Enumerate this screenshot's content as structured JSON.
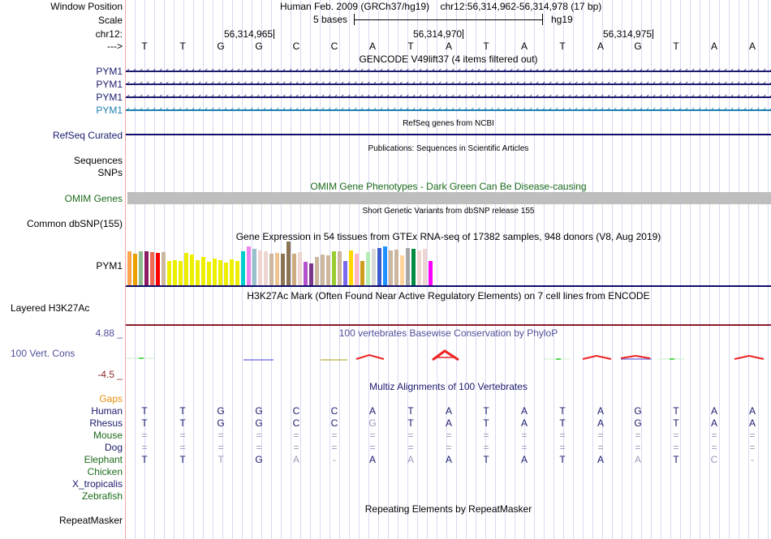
{
  "header": {
    "window_position_label": "Window Position",
    "scale_label": "Scale",
    "chrom_label": "chr12:",
    "strand_label": "--->",
    "assembly_title": "Human Feb. 2009 (GRCh37/hg19)",
    "position_range": "chr12:56,314,962-56,314,978 (17 bp)",
    "scale_text": "5 bases",
    "scale_db": "hg19",
    "position_ticks": [
      "56,314,965",
      "56,314,970",
      "56,314,975"
    ]
  },
  "sequence": [
    "T",
    "T",
    "G",
    "G",
    "C",
    "C",
    "A",
    "T",
    "A",
    "T",
    "A",
    "T",
    "A",
    "G",
    "T",
    "A",
    "A"
  ],
  "tracks": {
    "gencode": {
      "title": "GENCODE V49lift37 (4 items filtered out)",
      "items": [
        {
          "label": "PYM1",
          "color": "#1a1a6e"
        },
        {
          "label": "PYM1",
          "color": "#1a1a6e"
        },
        {
          "label": "PYM1",
          "color": "#1a1a6e"
        },
        {
          "label": "PYM1",
          "color": "#1b7fb0"
        }
      ]
    },
    "refseq": {
      "title": "RefSeq genes from NCBI",
      "label": "RefSeq Curated"
    },
    "publications": {
      "title": "Publications: Sequences in Scientific Articles",
      "labels": [
        "Sequences",
        "SNPs"
      ]
    },
    "omim": {
      "title": "OMIM Gene Phenotypes - Dark Green Can Be Disease-causing",
      "label": "OMIM Genes"
    },
    "dbsnp": {
      "title": "Short Genetic Variants from dbSNP release 155",
      "label": "Common dbSNP(155)"
    },
    "gtex": {
      "title": "Gene Expression in 54 tissues from GTEx RNA-seq of 17382 samples, 948 donors (V8, Aug 2019)",
      "label": "PYM1",
      "bars": [
        {
          "color": "#ffa54f",
          "value": 0.78
        },
        {
          "color": "#eea000",
          "value": 0.72
        },
        {
          "color": "#8fbc8f",
          "value": 0.78
        },
        {
          "color": "#8b1c62",
          "value": 0.78
        },
        {
          "color": "#ee6a50",
          "value": 0.76
        },
        {
          "color": "#ff0000",
          "value": 0.74
        },
        {
          "color": "#cdb79e",
          "value": 0.76
        },
        {
          "color": "#eeee00",
          "value": 0.56
        },
        {
          "color": "#eeee00",
          "value": 0.58
        },
        {
          "color": "#eeee00",
          "value": 0.56
        },
        {
          "color": "#eeee00",
          "value": 0.74
        },
        {
          "color": "#eeee00",
          "value": 0.7
        },
        {
          "color": "#eeee00",
          "value": 0.58
        },
        {
          "color": "#eeee00",
          "value": 0.64
        },
        {
          "color": "#eeee00",
          "value": 0.54
        },
        {
          "color": "#eeee00",
          "value": 0.62
        },
        {
          "color": "#eeee00",
          "value": 0.58
        },
        {
          "color": "#eeee00",
          "value": 0.52
        },
        {
          "color": "#eeee00",
          "value": 0.6
        },
        {
          "color": "#eeee00",
          "value": 0.56
        },
        {
          "color": "#00cdcd",
          "value": 0.78
        },
        {
          "color": "#ee82ee",
          "value": 0.88
        },
        {
          "color": "#9ac0cd",
          "value": 0.84
        },
        {
          "color": "#eed5d2",
          "value": 0.8
        },
        {
          "color": "#eed5d2",
          "value": 0.78
        },
        {
          "color": "#cdb79e",
          "value": 0.72
        },
        {
          "color": "#eec591",
          "value": 0.74
        },
        {
          "color": "#8b7355",
          "value": 0.72
        },
        {
          "color": "#8b7355",
          "value": 1.0
        },
        {
          "color": "#cdaa7d",
          "value": 0.72
        },
        {
          "color": "#eed5d2",
          "value": 0.76
        },
        {
          "color": "#b452cd",
          "value": 0.54
        },
        {
          "color": "#7a378b",
          "value": 0.5
        },
        {
          "color": "#cdb79e",
          "value": 0.64
        },
        {
          "color": "#cdb79e",
          "value": 0.7
        },
        {
          "color": "#cdb79e",
          "value": 0.68
        },
        {
          "color": "#9acd32",
          "value": 0.78
        },
        {
          "color": "#cdb79e",
          "value": 0.78
        },
        {
          "color": "#7b68ee",
          "value": 0.56
        },
        {
          "color": "#ffd700",
          "value": 0.8
        },
        {
          "color": "#ffb6c1",
          "value": 0.72
        },
        {
          "color": "#cd9b1d",
          "value": 0.56
        },
        {
          "color": "#b4eeb4",
          "value": 0.76
        },
        {
          "color": "#d9d9d9",
          "value": 0.84
        },
        {
          "color": "#3a5fcd",
          "value": 0.86
        },
        {
          "color": "#1e90ff",
          "value": 0.88
        },
        {
          "color": "#cdb79e",
          "value": 0.8
        },
        {
          "color": "#cdb79e",
          "value": 0.82
        },
        {
          "color": "#ffd39b",
          "value": 0.68
        },
        {
          "color": "#a6a6a6",
          "value": 0.86
        },
        {
          "color": "#008b45",
          "value": 0.84
        },
        {
          "color": "#eed5d2",
          "value": 0.8
        },
        {
          "color": "#eed5d2",
          "value": 0.84
        },
        {
          "color": "#ff00ff",
          "value": 0.56
        }
      ]
    },
    "h3k27ac": {
      "title": "H3K27Ac Mark (Often Found Near Active Regulatory Elements) on 7 cell lines from ENCODE",
      "label": "Layered H3K27Ac"
    },
    "phylop": {
      "title": "100 vertebrates Basewise Conservation by PhyloP",
      "label": "100 Vert. Cons",
      "max_label": "4.88 _",
      "min_label": "-4.5 _"
    },
    "multiz": {
      "title": "Multiz Alignments of 100 Vertebrates",
      "gaps_label": "Gaps",
      "species": [
        {
          "name": "Human",
          "color": "#1a1a6e",
          "bases": [
            "T",
            "T",
            "G",
            "G",
            "C",
            "C",
            "A",
            "T",
            "A",
            "T",
            "A",
            "T",
            "A",
            "G",
            "T",
            "A",
            "A"
          ],
          "dim": []
        },
        {
          "name": "Rhesus",
          "color": "#1a1a6e",
          "bases": [
            "T",
            "T",
            "G",
            "G",
            "C",
            "C",
            "G",
            "T",
            "A",
            "T",
            "A",
            "T",
            "A",
            "G",
            "T",
            "A",
            "A"
          ],
          "dim": [
            6
          ]
        },
        {
          "name": "Mouse",
          "color": "#1a6b1a",
          "bases": [
            "=",
            "=",
            "=",
            "=",
            "=",
            "=",
            "=",
            "=",
            "=",
            "=",
            "=",
            "=",
            "=",
            "=",
            "=",
            "=",
            "="
          ],
          "dim": [
            0,
            1,
            2,
            3,
            4,
            5,
            6,
            7,
            8,
            9,
            10,
            11,
            12,
            13,
            14,
            15,
            16
          ]
        },
        {
          "name": "Dog",
          "color": "#1a1a6e",
          "bases": [
            "=",
            "=",
            "=",
            "=",
            "=",
            "=",
            "=",
            "=",
            "=",
            "=",
            "=",
            "=",
            "=",
            "=",
            "=",
            "=",
            "="
          ],
          "dim": [
            0,
            1,
            2,
            3,
            4,
            5,
            6,
            7,
            8,
            9,
            10,
            11,
            12,
            13,
            14,
            15,
            16
          ]
        },
        {
          "name": "Elephant",
          "color": "#1a6b1a",
          "bases": [
            "T",
            "T",
            "T",
            "G",
            "A",
            "-",
            "A",
            "A",
            "A",
            "T",
            "A",
            "T",
            "A",
            "A",
            "T",
            "C",
            "-"
          ],
          "dim": [
            2,
            4,
            5,
            7,
            13,
            15,
            16
          ]
        },
        {
          "name": "Chicken",
          "color": "#1a6b1a",
          "bases": [],
          "dim": []
        },
        {
          "name": "X_tropicalis",
          "color": "#1a1a6e",
          "bases": [],
          "dim": []
        },
        {
          "name": "Zebrafish",
          "color": "#1a6b1a",
          "bases": [],
          "dim": []
        }
      ]
    },
    "repeatmasker": {
      "title": "Repeating Elements by RepeatMasker",
      "label": "RepeatMasker"
    }
  }
}
